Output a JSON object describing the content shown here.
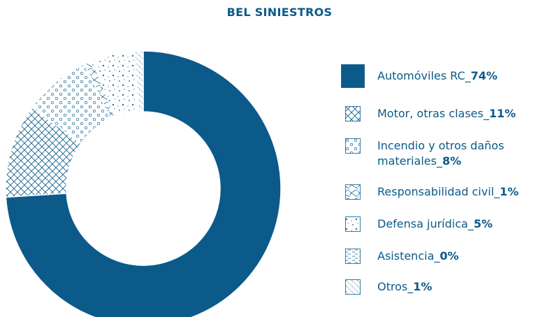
{
  "chart_data": {
    "type": "pie",
    "title": "BEL SINIESTROS",
    "categories": [
      "Automóviles RC",
      "Motor, otras clases",
      "Incendio y otros daños materiales",
      "Responsabilidad civil",
      "Defensa jurídica",
      "Asistencia",
      "Otros"
    ],
    "values": [
      74,
      11,
      8,
      1,
      5,
      0,
      1
    ],
    "value_labels": [
      "74%",
      "11%",
      "8%",
      "1%",
      "5%",
      "0%",
      "1%"
    ],
    "separator": "_",
    "color": "#0b5a8a",
    "fills": [
      "solid",
      "crosshatch",
      "circles",
      "curves",
      "sparse-dots",
      "dashes",
      "dotted-diagonal"
    ],
    "donut": true
  }
}
